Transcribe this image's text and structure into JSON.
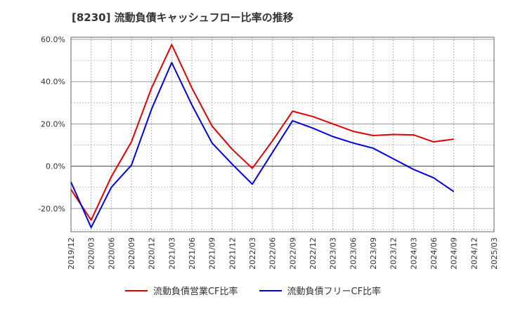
{
  "title": "[8230]  流動負債キャッシュフロー比率の推移",
  "chart_data": {
    "type": "line",
    "title": "[8230]  流動負債キャッシュフロー比率の推移",
    "xlabel": "",
    "ylabel": "",
    "x": [
      "2019/12",
      "2020/03",
      "2020/06",
      "2020/09",
      "2020/12",
      "2021/03",
      "2021/06",
      "2021/09",
      "2021/12",
      "2022/03",
      "2022/06",
      "2022/09",
      "2022/12",
      "2023/03",
      "2023/06",
      "2023/09",
      "2023/12",
      "2024/03",
      "2024/06",
      "2024/09",
      "2024/12",
      "2025/03"
    ],
    "x_tick_labels": [
      "2019/12",
      "2020/03",
      "2020/06",
      "2020/09",
      "2020/12",
      "2021/03",
      "2021/06",
      "2021/09",
      "2021/12",
      "2022/03",
      "2022/06",
      "2022/09",
      "2022/12",
      "2023/03",
      "2023/06",
      "2023/09",
      "2023/12",
      "2024/03",
      "2024/06",
      "2024/09",
      "2024/12",
      "2025/03"
    ],
    "y_tick_labels": [
      "60.0%",
      "40.0%",
      "20.0%",
      "0.0%",
      "-20.0%"
    ],
    "y_ticks": [
      60,
      40,
      20,
      0,
      -20
    ],
    "ylim": [
      -31,
      61
    ],
    "grid": true,
    "legend_position": "bottom",
    "series": [
      {
        "name": "流動負債営業CF比率",
        "color": "#dd0000",
        "values": [
          -11,
          -25.5,
          -5,
          11.5,
          37,
          57.5,
          37,
          19,
          8,
          -1,
          12,
          26,
          23.5,
          20,
          16.5,
          14.5,
          15,
          14.8,
          11.5,
          12.8,
          null,
          null
        ]
      },
      {
        "name": "流動負債フリーCF比率",
        "color": "#0000dd",
        "values": [
          -7.5,
          -29,
          -10,
          0.5,
          27,
          49,
          29,
          11,
          1,
          -8.5,
          6.5,
          21.5,
          18,
          14,
          11,
          8.5,
          3.5,
          -1.5,
          -5.5,
          -12,
          null,
          null
        ]
      }
    ]
  }
}
